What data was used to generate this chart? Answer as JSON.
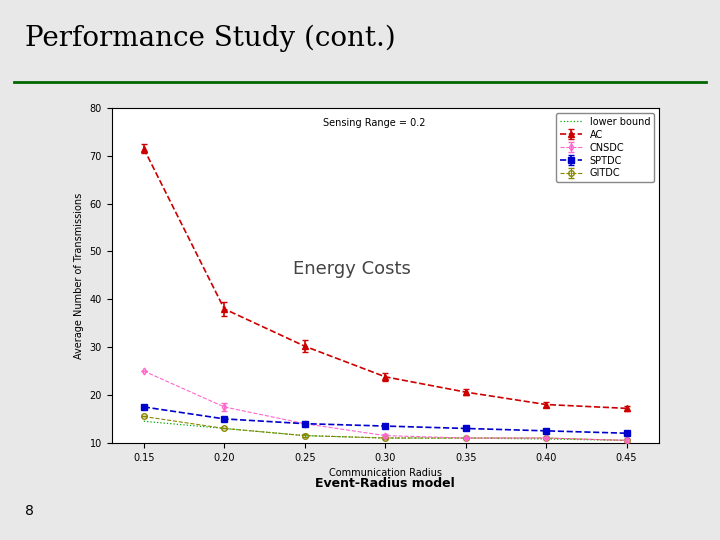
{
  "title": "Performance Study (cont.)",
  "subtitle": "Sensing Range = 0.2",
  "annotation": "Energy Costs",
  "xlabel": "Communication Radius",
  "ylabel": "Average Number of Transmissions",
  "xlim": [
    0.13,
    0.47
  ],
  "ylim": [
    10,
    80
  ],
  "yticks": [
    10,
    20,
    30,
    40,
    50,
    60,
    70,
    80
  ],
  "xticks": [
    0.15,
    0.2,
    0.25,
    0.3,
    0.35,
    0.4,
    0.45
  ],
  "x": [
    0.15,
    0.2,
    0.25,
    0.3,
    0.35,
    0.4,
    0.45
  ],
  "AC": [
    71.5,
    38.0,
    30.2,
    23.8,
    20.6,
    18.0,
    17.2
  ],
  "AC_err": [
    1.0,
    1.5,
    1.2,
    0.8,
    0.6,
    0.5,
    0.5
  ],
  "CNSDC": [
    25.0,
    17.5,
    14.0,
    11.5,
    11.0,
    11.0,
    10.5
  ],
  "CNSDC_err": [
    0.0,
    0.8,
    0.4,
    0.3,
    0.3,
    0.3,
    0.3
  ],
  "SPTDC": [
    17.5,
    15.0,
    14.0,
    13.5,
    13.0,
    12.5,
    12.0
  ],
  "SPTDC_err": [
    0.0,
    0.0,
    0.4,
    0.3,
    0.3,
    0.3,
    0.3
  ],
  "GITDC": [
    15.5,
    13.0,
    11.5,
    11.0,
    11.0,
    11.0,
    10.5
  ],
  "GITDC_err": [
    0.0,
    0.0,
    0.3,
    0.3,
    0.3,
    0.3,
    0.3
  ],
  "lower_bound": [
    14.5,
    13.0,
    11.5,
    11.0,
    11.0,
    10.8,
    10.5
  ],
  "slide_bg": "#e8e8e8",
  "plot_bg": "#ffffff",
  "title_color": "#000000",
  "AC_color": "#cc0000",
  "CNSDC_color": "#ff66cc",
  "SPTDC_color": "#0000cc",
  "GITDC_color": "#888800",
  "lower_bound_color": "#00aa00",
  "title_fontsize": 20,
  "axis_fontsize": 7,
  "legend_fontsize": 7,
  "annotation_fontsize": 13
}
